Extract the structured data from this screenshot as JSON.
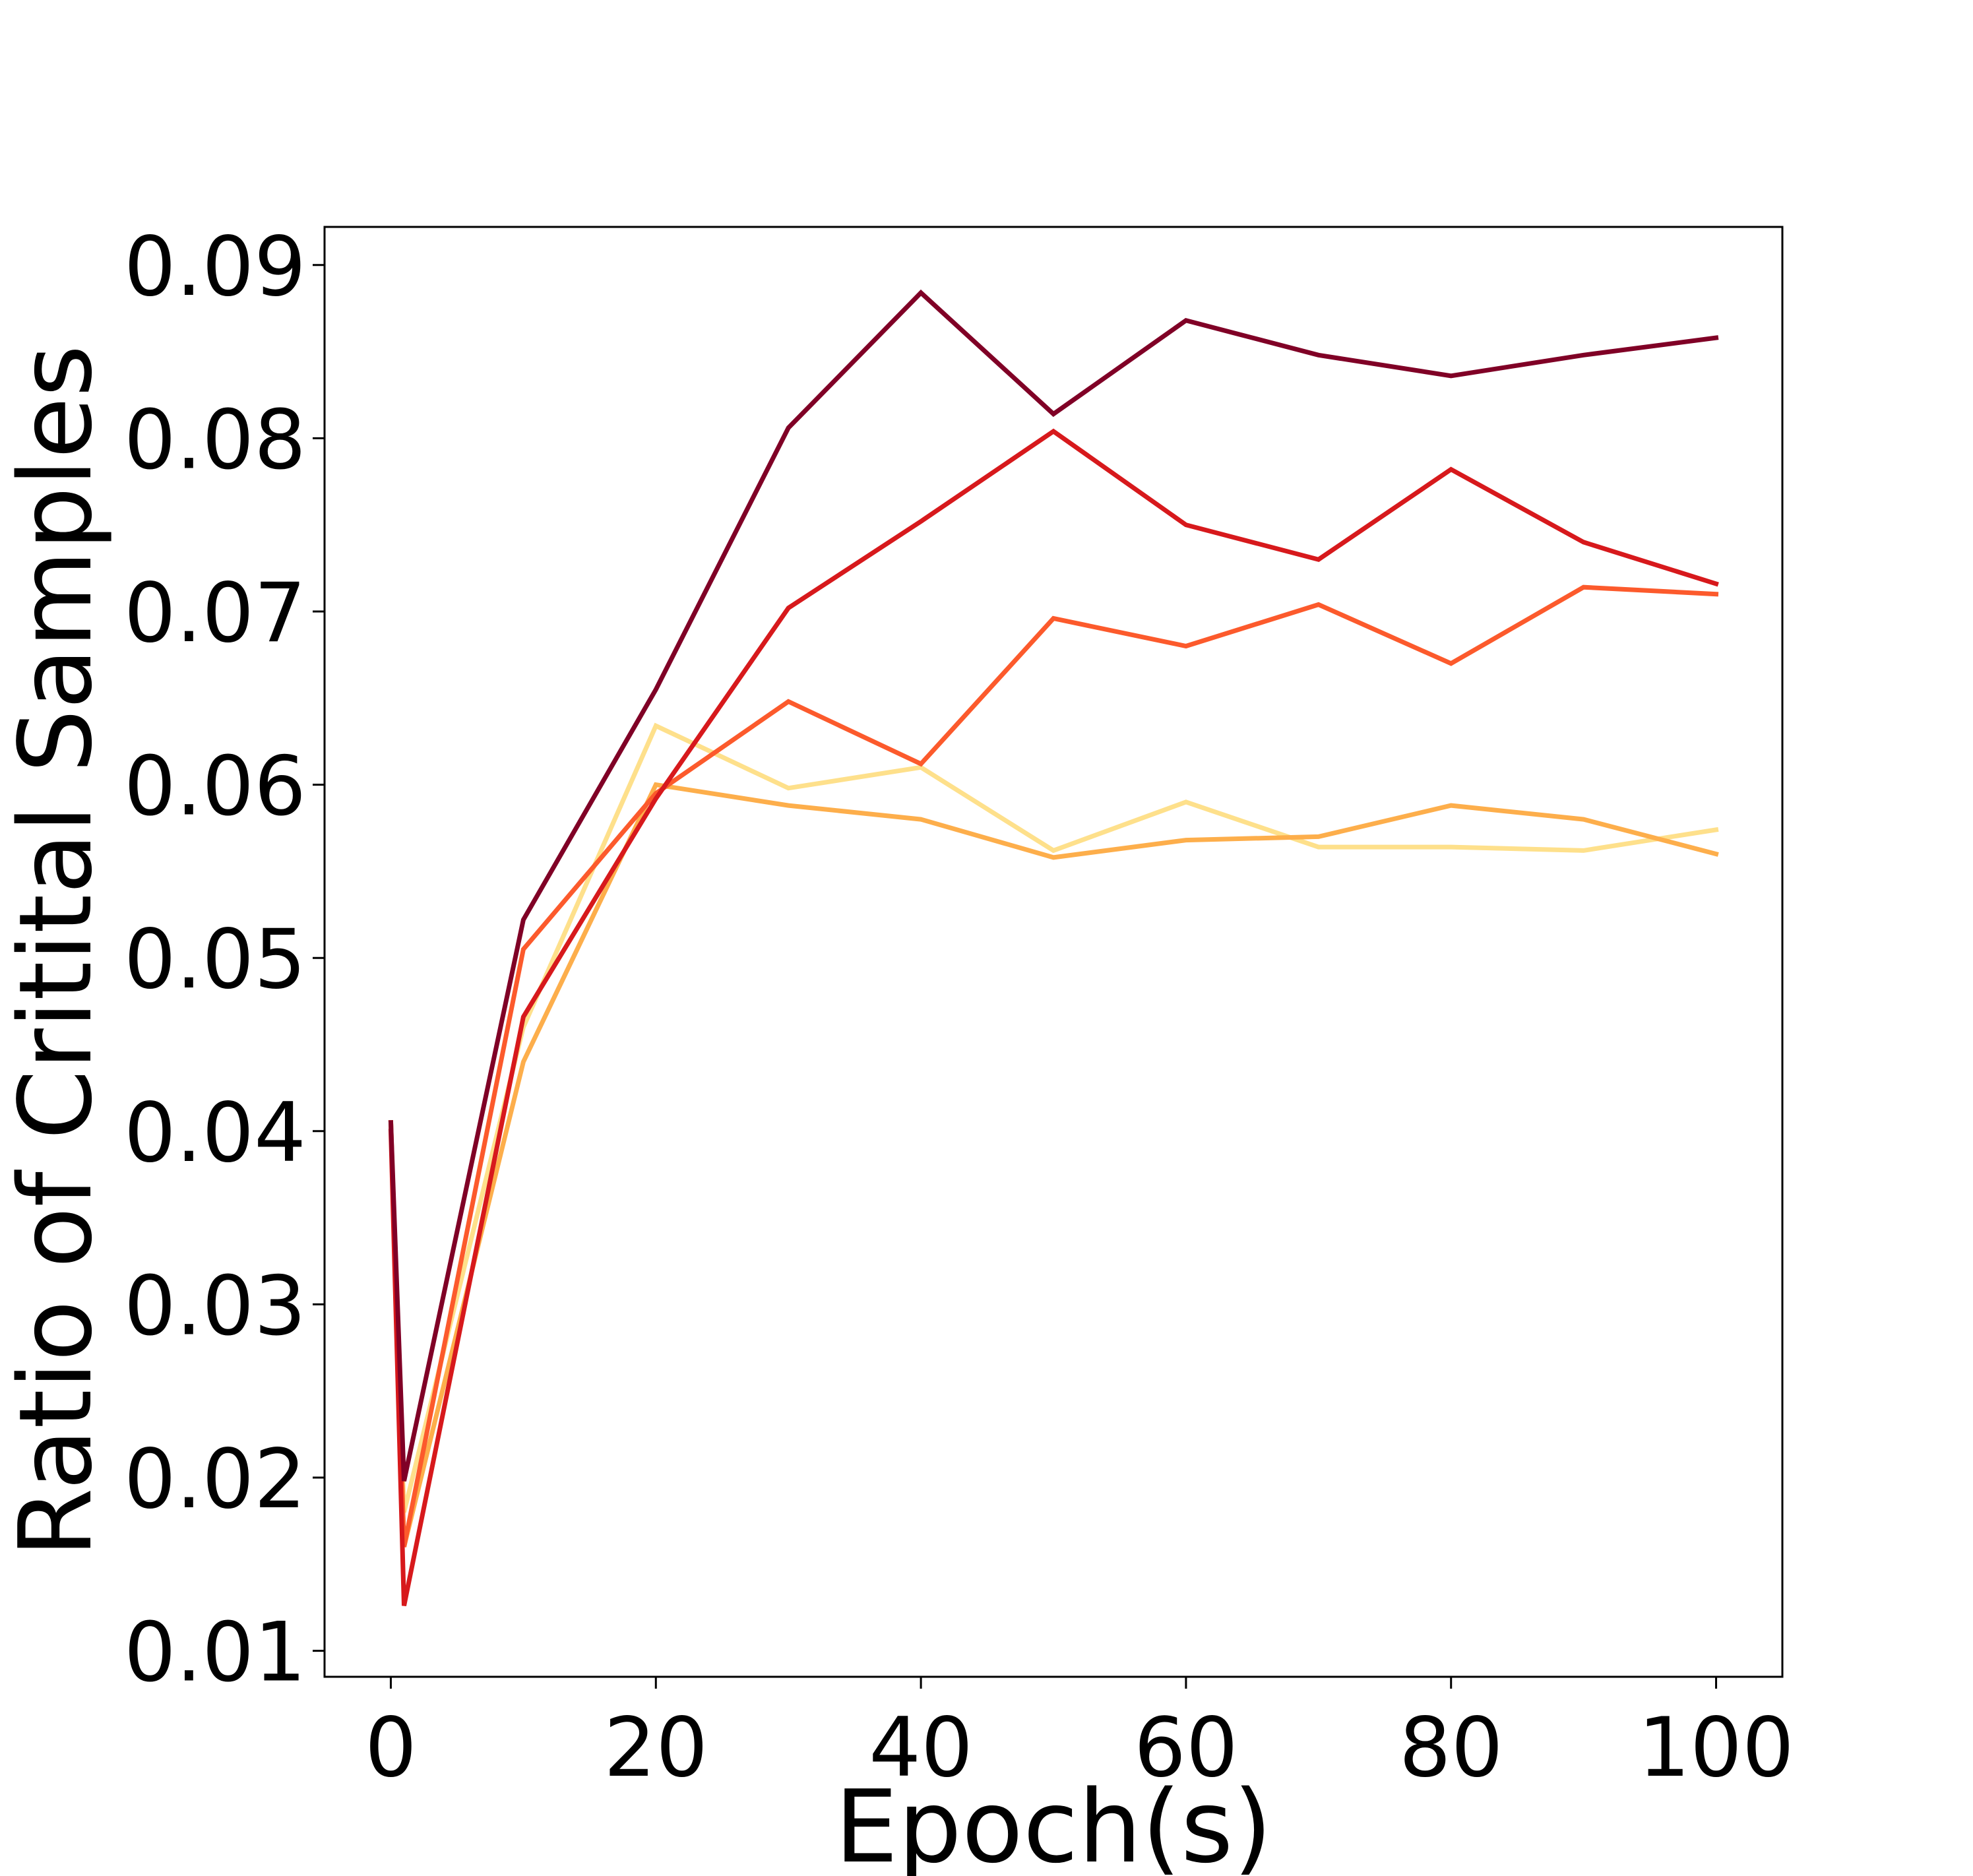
{
  "chart_data": {
    "type": "line",
    "title": "",
    "xlabel": "Epoch(s)",
    "ylabel": "Ratio of Critital Samples",
    "xlim": [
      -5,
      105
    ],
    "ylim": [
      0.0085,
      0.0922
    ],
    "xticks": [
      0,
      20,
      40,
      60,
      80,
      100
    ],
    "xtick_labels": [
      "0",
      "20",
      "40",
      "60",
      "80",
      "100"
    ],
    "yticks": [
      0.01,
      0.02,
      0.03,
      0.04,
      0.05,
      0.06,
      0.07,
      0.08,
      0.09
    ],
    "ytick_labels": [
      "0.01",
      "0.02",
      "0.03",
      "0.04",
      "0.05",
      "0.06",
      "0.07",
      "0.08",
      "0.09"
    ],
    "grid": false,
    "legend": "none",
    "x": [
      0,
      1,
      10,
      20,
      30,
      40,
      50,
      60,
      70,
      80,
      90,
      100
    ],
    "series": [
      {
        "color": "#fee08b",
        "values": [
          0.0405,
          0.018,
          0.046,
          0.0634,
          0.0598,
          0.061,
          0.0562,
          0.059,
          0.0564,
          0.0564,
          0.0562,
          0.0574
        ]
      },
      {
        "color": "#fdae4b",
        "values": [
          0.0405,
          0.016,
          0.044,
          0.06,
          0.0588,
          0.058,
          0.0558,
          0.0568,
          0.057,
          0.0588,
          0.058,
          0.056
        ]
      },
      {
        "color": "#fc5a2c",
        "values": [
          0.0405,
          0.016,
          0.0505,
          0.0595,
          0.0648,
          0.0612,
          0.0696,
          0.068,
          0.0704,
          0.067,
          0.0714,
          0.071
        ]
      },
      {
        "color": "#d7191c",
        "values": [
          0.04,
          0.0126,
          0.0466,
          0.0592,
          0.0702,
          0.0752,
          0.0804,
          0.075,
          0.073,
          0.0782,
          0.074,
          0.0716
        ]
      },
      {
        "color": "#800026",
        "values": [
          0.0405,
          0.0198,
          0.0522,
          0.0655,
          0.0806,
          0.0884,
          0.0814,
          0.0868,
          0.0848,
          0.0836,
          0.0848,
          0.0858
        ]
      }
    ]
  }
}
